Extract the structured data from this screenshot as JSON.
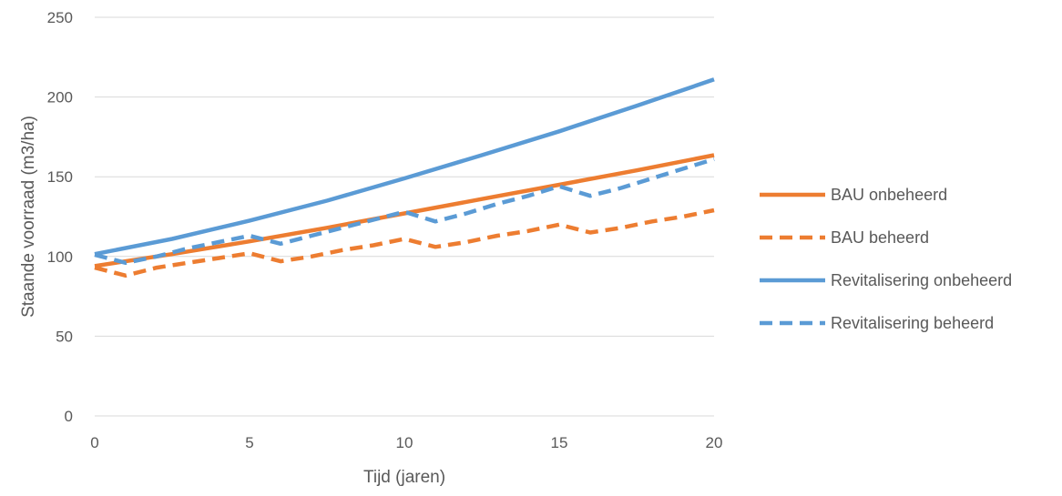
{
  "chart_data": {
    "type": "line",
    "title": "",
    "xlabel": "Tijd (jaren)",
    "ylabel": "Staande voorraad (m3/ha)",
    "xlim": [
      0,
      20
    ],
    "ylim": [
      0,
      250
    ],
    "xticks": [
      0,
      5,
      10,
      15,
      20
    ],
    "yticks": [
      0,
      50,
      100,
      150,
      200,
      250
    ],
    "grid": "horizontal",
    "legend_position": "right",
    "series": [
      {
        "name": "BAU onbeheerd",
        "color": "#ED7D31",
        "style": "solid",
        "points": [
          [
            0,
            94
          ],
          [
            2.5,
            101.5
          ],
          [
            5,
            109.5
          ],
          [
            7.5,
            118
          ],
          [
            10,
            127
          ],
          [
            12.5,
            136
          ],
          [
            15,
            145
          ],
          [
            17.5,
            154
          ],
          [
            20,
            163.5
          ]
        ]
      },
      {
        "name": "BAU beheerd",
        "color": "#ED7D31",
        "style": "dashed",
        "points": [
          [
            0,
            93
          ],
          [
            1,
            88
          ],
          [
            2,
            93
          ],
          [
            3,
            96
          ],
          [
            4,
            99
          ],
          [
            5,
            102
          ],
          [
            6,
            97
          ],
          [
            7,
            100
          ],
          [
            8,
            104
          ],
          [
            9,
            107
          ],
          [
            10,
            111
          ],
          [
            11,
            106
          ],
          [
            12,
            109
          ],
          [
            13,
            113
          ],
          [
            14,
            116
          ],
          [
            15,
            120
          ],
          [
            16,
            115
          ],
          [
            17,
            118
          ],
          [
            18,
            122
          ],
          [
            19,
            125
          ],
          [
            20,
            129
          ]
        ]
      },
      {
        "name": "Revitalisering onbeheerd",
        "color": "#5B9BD5",
        "style": "solid",
        "points": [
          [
            0,
            101.5
          ],
          [
            2.5,
            111
          ],
          [
            5,
            122.5
          ],
          [
            7.5,
            135
          ],
          [
            10,
            149
          ],
          [
            12.5,
            163.5
          ],
          [
            15,
            178.5
          ],
          [
            17.5,
            194.5
          ],
          [
            20,
            211
          ]
        ]
      },
      {
        "name": "Revitalisering beheerd",
        "color": "#5B9BD5",
        "style": "dashed",
        "points": [
          [
            0,
            101
          ],
          [
            1,
            96
          ],
          [
            2,
            100
          ],
          [
            3,
            105
          ],
          [
            4,
            109
          ],
          [
            5,
            113
          ],
          [
            6,
            108
          ],
          [
            7,
            113
          ],
          [
            8,
            118
          ],
          [
            9,
            123
          ],
          [
            10,
            128
          ],
          [
            11,
            122
          ],
          [
            12,
            127
          ],
          [
            13,
            133
          ],
          [
            14,
            138
          ],
          [
            15,
            144
          ],
          [
            16,
            138
          ],
          [
            17,
            143
          ],
          [
            18,
            149
          ],
          [
            19,
            155
          ],
          [
            20,
            161
          ]
        ]
      }
    ]
  }
}
